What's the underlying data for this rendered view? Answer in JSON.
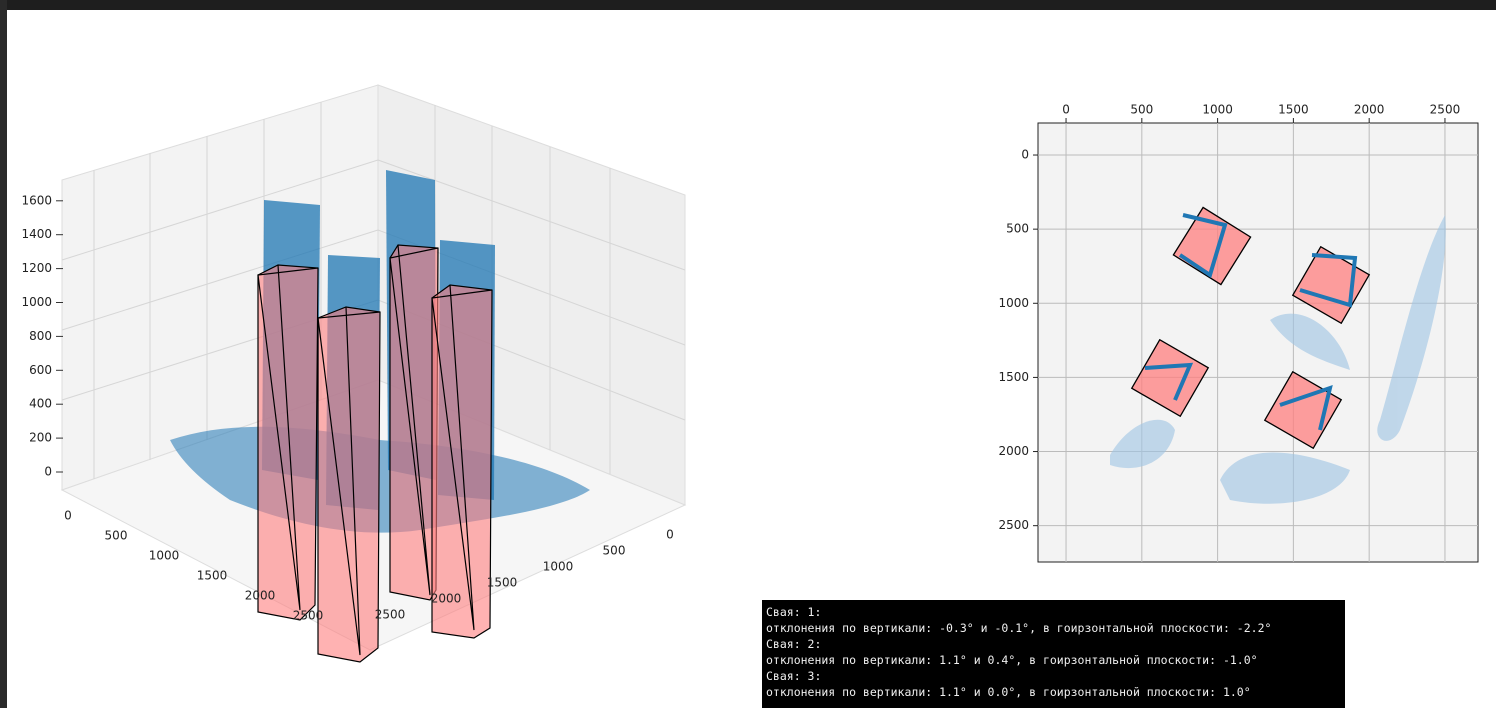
{
  "plot3d": {
    "z_ticks": [
      0,
      200,
      400,
      600,
      800,
      1000,
      1200,
      1400,
      1600
    ],
    "x_ticks": [
      0,
      500,
      1000,
      1500,
      2000,
      2500
    ],
    "y_ticks": [
      0,
      500,
      1000,
      1500,
      2000,
      2500
    ]
  },
  "plot2d": {
    "xlim": [
      -185,
      2718
    ],
    "ylim": [
      -216,
      2745
    ],
    "xticks": [
      0,
      500,
      1000,
      1500,
      2000,
      2500
    ],
    "yticks": [
      0,
      500,
      1000,
      1500,
      2000,
      2500
    ]
  },
  "console": {
    "lines": [
      "Свая: 1:",
      "отклонения по вертикали: -0.3° и -0.1°, в гоирзонтальной плоскости: -2.2°",
      "Свая: 2:",
      "отклонения по вертикали: 1.1° и 0.4°, в гоирзонтальной плоскости: -1.0°",
      "Свая: 3:",
      "отклонения по вертикали: 1.1° и 0.0°, в гоирзонтальной плоскости: 1.0°"
    ]
  }
}
